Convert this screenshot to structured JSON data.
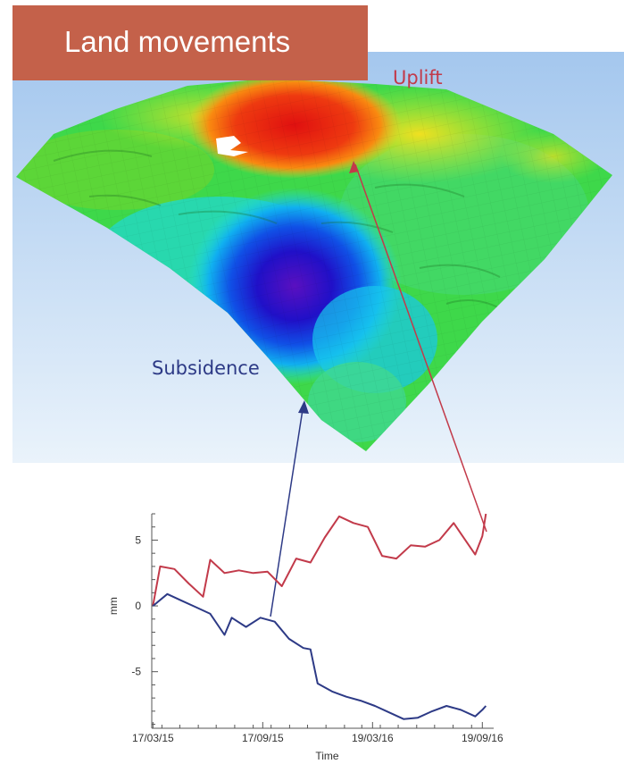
{
  "title": "Land movements",
  "labels": {
    "uplift": "Uplift",
    "subsidence": "Subsidence"
  },
  "colors": {
    "title_bg": "#c4614a",
    "uplift": "#c23a4a",
    "subsidence": "#2d3a86",
    "sky_top": "#a4c7ee",
    "sky_bottom": "#e8f2fb"
  },
  "chart_data": {
    "type": "line",
    "xlabel": "Time",
    "ylabel": "mm",
    "x_tick_labels": [
      "17/03/15",
      "17/09/15",
      "19/03/16",
      "19/09/16"
    ],
    "x_ticks": [
      "2015-03-17",
      "2015-09-17",
      "2016-03-19",
      "2016-09-19"
    ],
    "y_ticks": [
      5,
      0,
      -5
    ],
    "ylim": [
      -9.3,
      7.0
    ],
    "xlim": [
      "2015-03-15",
      "2016-10-08"
    ],
    "grid": false,
    "series": [
      {
        "color": "#c23a4a",
        "x": [
          "2015-03-17",
          "2015-03-29",
          "2015-04-22",
          "2015-05-16",
          "2015-06-09",
          "2015-06-21",
          "2015-07-15",
          "2015-08-08",
          "2015-09-01",
          "2015-09-25",
          "2015-10-19",
          "2015-11-12",
          "2015-12-06",
          "2015-12-30",
          "2016-01-23",
          "2016-02-16",
          "2016-03-11",
          "2016-04-04",
          "2016-04-28",
          "2016-05-22",
          "2016-06-15",
          "2016-07-09",
          "2016-08-02",
          "2016-08-14",
          "2016-09-07",
          "2016-09-19",
          "2016-09-25"
        ],
        "values": [
          0.0,
          3.0,
          2.8,
          1.7,
          0.7,
          3.5,
          2.5,
          2.7,
          2.5,
          2.6,
          1.5,
          3.6,
          3.3,
          5.2,
          6.8,
          6.3,
          6.0,
          3.8,
          3.6,
          4.6,
          4.5,
          5.0,
          6.3,
          5.5,
          3.9,
          5.3,
          7.0
        ]
      },
      {
        "color": "#2d3a86",
        "x": [
          "2015-03-17",
          "2015-04-10",
          "2015-05-04",
          "2015-05-28",
          "2015-06-21",
          "2015-07-15",
          "2015-07-27",
          "2015-08-20",
          "2015-09-13",
          "2015-10-07",
          "2015-10-31",
          "2015-11-24",
          "2015-12-06",
          "2015-12-18",
          "2016-01-11",
          "2016-02-04",
          "2016-02-28",
          "2016-03-23",
          "2016-04-16",
          "2016-05-10",
          "2016-06-03",
          "2016-06-27",
          "2016-07-21",
          "2016-08-14",
          "2016-09-07",
          "2016-09-19",
          "2016-09-25"
        ],
        "values": [
          0.0,
          0.9,
          0.4,
          -0.1,
          -0.6,
          -2.2,
          -0.9,
          -1.6,
          -0.9,
          -1.2,
          -2.5,
          -3.2,
          -3.3,
          -5.9,
          -6.5,
          -6.9,
          -7.2,
          -7.6,
          -8.1,
          -8.6,
          -8.5,
          -8.0,
          -7.6,
          -7.9,
          -8.4,
          -7.9,
          -7.6
        ]
      }
    ]
  }
}
